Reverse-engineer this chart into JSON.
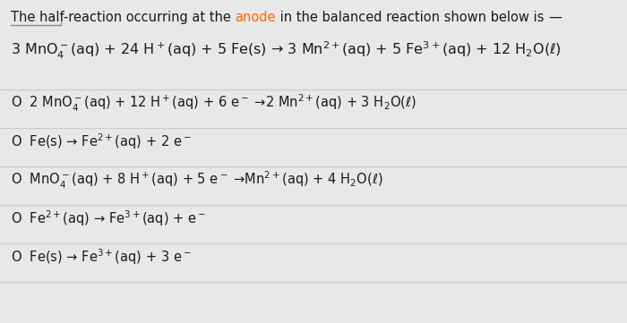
{
  "background_color": "#e8e8e8",
  "text_color": "#1a1a1a",
  "anode_color": "#ff6600",
  "line_color": "#cccccc",
  "underline_color": "#888888",
  "font_size_title": 10.5,
  "font_size_reaction": 11.5,
  "font_size_options": 10.5,
  "title_seg1": "The half-reaction occurring at the ",
  "title_seg2": "anode",
  "title_seg3": " in the balanced reaction shown below is ",
  "title_seg4": "—",
  "main_reaction": "3 MnO$_4^-$(aq) + 24 H$^+$(aq) + 5 Fe(s) → 3 Mn$^{2+}$(aq) + 5 Fe$^{3+}$(aq) + 12 H$_2$O(ℓ)",
  "option1": "O  2 MnO$_4^-$(aq) + 12 H$^+$(aq) + 6 e$^-$ →2 Mn$^{2+}$(aq) + 3 H$_2$O(ℓ)",
  "option2": "O  Fe(s) → Fe$^{2+}$(aq) + 2 e$^-$",
  "option3": "O  MnO$_4^-$(aq) + 8 H$^+$(aq) + 5 e$^-$ →Mn$^{2+}$(aq) + 4 H$_2$O(ℓ)",
  "option4": "O  Fe$^{2+}$(aq) → Fe$^{3+}$(aq) + e$^-$",
  "option5": "O  Fe(s) → Fe$^{3+}$(aq) + 3 e$^-$"
}
